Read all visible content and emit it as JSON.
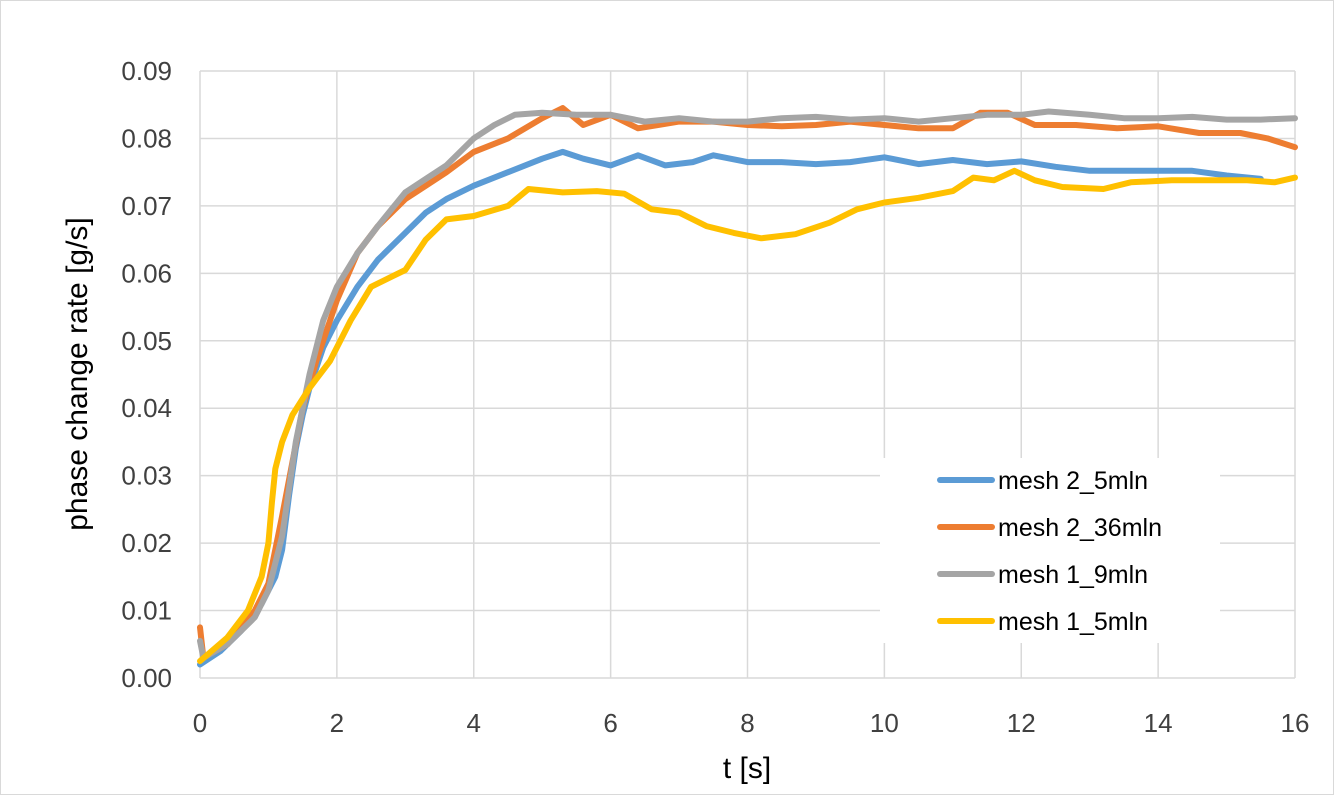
{
  "chart_data": {
    "type": "line",
    "title": "",
    "xlabel": "t [s]",
    "ylabel": "phase change rate [g/s]",
    "xlim": [
      0,
      16
    ],
    "ylim": [
      0,
      0.09
    ],
    "x_ticks": [
      "0",
      "2",
      "4",
      "6",
      "8",
      "10",
      "12",
      "14",
      "16"
    ],
    "y_ticks": [
      "0.00",
      "0.01",
      "0.02",
      "0.03",
      "0.04",
      "0.05",
      "0.06",
      "0.07",
      "0.08",
      "0.09"
    ],
    "grid": true,
    "legend_position": "bottom-right",
    "series": [
      {
        "name": "mesh 2_5mln",
        "color": "#5b9bd5",
        "points": [
          [
            0,
            0.002
          ],
          [
            0.3,
            0.004
          ],
          [
            0.6,
            0.007
          ],
          [
            0.9,
            0.011
          ],
          [
            1.1,
            0.015
          ],
          [
            1.2,
            0.019
          ],
          [
            1.3,
            0.027
          ],
          [
            1.4,
            0.034
          ],
          [
            1.5,
            0.039
          ],
          [
            1.6,
            0.043
          ],
          [
            1.8,
            0.049
          ],
          [
            2.0,
            0.053
          ],
          [
            2.3,
            0.058
          ],
          [
            2.6,
            0.062
          ],
          [
            3.0,
            0.066
          ],
          [
            3.3,
            0.069
          ],
          [
            3.6,
            0.071
          ],
          [
            4.0,
            0.073
          ],
          [
            4.5,
            0.075
          ],
          [
            5.0,
            0.077
          ],
          [
            5.3,
            0.078
          ],
          [
            5.6,
            0.077
          ],
          [
            6.0,
            0.076
          ],
          [
            6.4,
            0.0775
          ],
          [
            6.8,
            0.076
          ],
          [
            7.2,
            0.0765
          ],
          [
            7.5,
            0.0775
          ],
          [
            8.0,
            0.0765
          ],
          [
            8.5,
            0.0765
          ],
          [
            9.0,
            0.0762
          ],
          [
            9.5,
            0.0765
          ],
          [
            10.0,
            0.0772
          ],
          [
            10.5,
            0.0762
          ],
          [
            11.0,
            0.0768
          ],
          [
            11.5,
            0.0762
          ],
          [
            12.0,
            0.0766
          ],
          [
            12.5,
            0.0758
          ],
          [
            13.0,
            0.0752
          ],
          [
            13.5,
            0.0752
          ],
          [
            14.0,
            0.0752
          ],
          [
            14.5,
            0.0752
          ],
          [
            15.0,
            0.0745
          ],
          [
            15.5,
            0.074
          ]
        ]
      },
      {
        "name": "mesh 2_36mln",
        "color": "#ed7d31",
        "points": [
          [
            0,
            0.0075
          ],
          [
            0.05,
            0.003
          ],
          [
            0.4,
            0.005
          ],
          [
            0.8,
            0.01
          ],
          [
            1.0,
            0.014
          ],
          [
            1.2,
            0.024
          ],
          [
            1.35,
            0.032
          ],
          [
            1.5,
            0.04
          ],
          [
            1.7,
            0.047
          ],
          [
            2.0,
            0.056
          ],
          [
            2.3,
            0.063
          ],
          [
            2.6,
            0.067
          ],
          [
            3.0,
            0.071
          ],
          [
            3.3,
            0.073
          ],
          [
            3.6,
            0.075
          ],
          [
            4.0,
            0.078
          ],
          [
            4.5,
            0.08
          ],
          [
            5.0,
            0.083
          ],
          [
            5.3,
            0.0845
          ],
          [
            5.6,
            0.082
          ],
          [
            6.0,
            0.0835
          ],
          [
            6.4,
            0.0815
          ],
          [
            7.0,
            0.0825
          ],
          [
            7.5,
            0.0825
          ],
          [
            8.0,
            0.082
          ],
          [
            8.5,
            0.0818
          ],
          [
            9.0,
            0.082
          ],
          [
            9.5,
            0.0825
          ],
          [
            10.0,
            0.082
          ],
          [
            10.5,
            0.0815
          ],
          [
            11.0,
            0.0815
          ],
          [
            11.4,
            0.0838
          ],
          [
            11.8,
            0.0838
          ],
          [
            12.2,
            0.082
          ],
          [
            12.8,
            0.082
          ],
          [
            13.4,
            0.0815
          ],
          [
            14.0,
            0.0818
          ],
          [
            14.6,
            0.0808
          ],
          [
            15.2,
            0.0808
          ],
          [
            15.6,
            0.08
          ],
          [
            16.0,
            0.0787
          ]
        ]
      },
      {
        "name": "mesh 1_9mln",
        "color": "#a5a5a5",
        "points": [
          [
            0,
            0.0055
          ],
          [
            0.05,
            0.003
          ],
          [
            0.4,
            0.005
          ],
          [
            0.8,
            0.009
          ],
          [
            1.0,
            0.013
          ],
          [
            1.2,
            0.021
          ],
          [
            1.4,
            0.035
          ],
          [
            1.6,
            0.045
          ],
          [
            1.8,
            0.053
          ],
          [
            2.0,
            0.058
          ],
          [
            2.3,
            0.063
          ],
          [
            2.6,
            0.067
          ],
          [
            3.0,
            0.072
          ],
          [
            3.3,
            0.074
          ],
          [
            3.6,
            0.076
          ],
          [
            4.0,
            0.08
          ],
          [
            4.3,
            0.082
          ],
          [
            4.6,
            0.0835
          ],
          [
            5.0,
            0.0838
          ],
          [
            5.5,
            0.0835
          ],
          [
            6.0,
            0.0835
          ],
          [
            6.5,
            0.0825
          ],
          [
            7.0,
            0.083
          ],
          [
            7.5,
            0.0825
          ],
          [
            8.0,
            0.0825
          ],
          [
            8.5,
            0.083
          ],
          [
            9.0,
            0.0832
          ],
          [
            9.5,
            0.0828
          ],
          [
            10.0,
            0.083
          ],
          [
            10.5,
            0.0825
          ],
          [
            11.0,
            0.083
          ],
          [
            11.5,
            0.0835
          ],
          [
            12.0,
            0.0835
          ],
          [
            12.4,
            0.084
          ],
          [
            13.0,
            0.0835
          ],
          [
            13.5,
            0.083
          ],
          [
            14.0,
            0.083
          ],
          [
            14.5,
            0.0832
          ],
          [
            15.0,
            0.0828
          ],
          [
            15.5,
            0.0828
          ],
          [
            16.0,
            0.083
          ]
        ]
      },
      {
        "name": "mesh 1_5mln",
        "color": "#ffc000",
        "points": [
          [
            0,
            0.0025
          ],
          [
            0.4,
            0.006
          ],
          [
            0.7,
            0.01
          ],
          [
            0.9,
            0.015
          ],
          [
            1.0,
            0.02
          ],
          [
            1.05,
            0.026
          ],
          [
            1.1,
            0.031
          ],
          [
            1.2,
            0.035
          ],
          [
            1.35,
            0.039
          ],
          [
            1.6,
            0.043
          ],
          [
            1.9,
            0.047
          ],
          [
            2.2,
            0.053
          ],
          [
            2.5,
            0.058
          ],
          [
            2.8,
            0.0595
          ],
          [
            3.0,
            0.0605
          ],
          [
            3.3,
            0.065
          ],
          [
            3.6,
            0.068
          ],
          [
            4.0,
            0.0685
          ],
          [
            4.5,
            0.07
          ],
          [
            4.8,
            0.0725
          ],
          [
            5.3,
            0.072
          ],
          [
            5.8,
            0.0722
          ],
          [
            6.2,
            0.0718
          ],
          [
            6.6,
            0.0695
          ],
          [
            7.0,
            0.069
          ],
          [
            7.4,
            0.067
          ],
          [
            7.8,
            0.066
          ],
          [
            8.2,
            0.0652
          ],
          [
            8.7,
            0.0658
          ],
          [
            9.2,
            0.0675
          ],
          [
            9.6,
            0.0695
          ],
          [
            10.0,
            0.0705
          ],
          [
            10.5,
            0.0712
          ],
          [
            11.0,
            0.0722
          ],
          [
            11.3,
            0.0742
          ],
          [
            11.6,
            0.0738
          ],
          [
            11.9,
            0.0752
          ],
          [
            12.2,
            0.0738
          ],
          [
            12.6,
            0.0728
          ],
          [
            13.2,
            0.0725
          ],
          [
            13.6,
            0.0735
          ],
          [
            14.2,
            0.0738
          ],
          [
            14.8,
            0.0738
          ],
          [
            15.3,
            0.0738
          ],
          [
            15.7,
            0.0735
          ],
          [
            16.0,
            0.0742
          ]
        ]
      }
    ]
  }
}
